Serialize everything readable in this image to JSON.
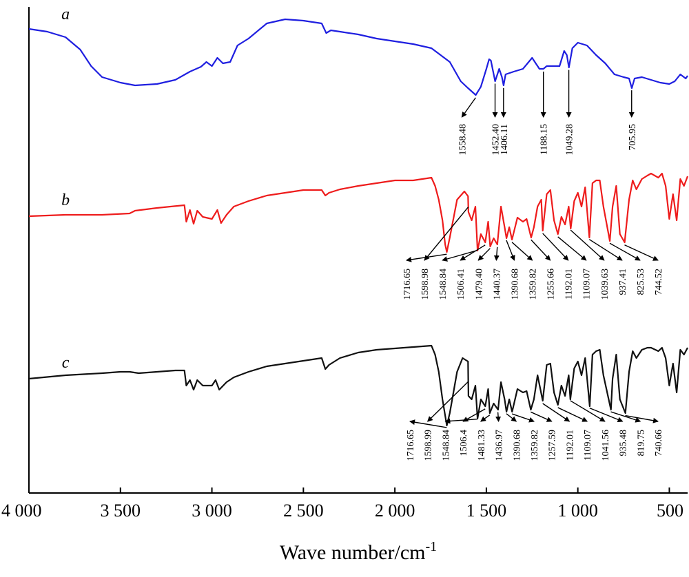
{
  "chart_data": {
    "type": "line",
    "xlabel": "Wave number/cm",
    "xlabel_sup": "-1",
    "x_ticks": [
      {
        "value": 4000,
        "label": "4 000"
      },
      {
        "value": 3500,
        "label": "3 500"
      },
      {
        "value": 3000,
        "label": "3 000"
      },
      {
        "value": 2500,
        "label": "2 500"
      },
      {
        "value": 2000,
        "label": "2 000"
      },
      {
        "value": 1500,
        "label": "1 500"
      },
      {
        "value": 1000,
        "label": "1 000"
      },
      {
        "value": 500,
        "label": "500"
      }
    ],
    "xlim": [
      4000,
      400
    ],
    "x_reversed": true,
    "y_axis_ticks": false,
    "grid": false,
    "legend": "none",
    "series": [
      {
        "name": "a",
        "color": "#1f1fe0",
        "baseline": 42,
        "points": [
          [
            4000,
            42
          ],
          [
            3900,
            46
          ],
          [
            3800,
            54
          ],
          [
            3720,
            72
          ],
          [
            3660,
            96
          ],
          [
            3600,
            112
          ],
          [
            3500,
            120
          ],
          [
            3420,
            124
          ],
          [
            3300,
            122
          ],
          [
            3200,
            116
          ],
          [
            3120,
            104
          ],
          [
            3060,
            97
          ],
          [
            3030,
            90
          ],
          [
            3000,
            96
          ],
          [
            2970,
            84
          ],
          [
            2940,
            92
          ],
          [
            2900,
            90
          ],
          [
            2860,
            66
          ],
          [
            2800,
            56
          ],
          [
            2700,
            34
          ],
          [
            2600,
            28
          ],
          [
            2500,
            30
          ],
          [
            2400,
            34
          ],
          [
            2375,
            48
          ],
          [
            2350,
            44
          ],
          [
            2300,
            46
          ],
          [
            2200,
            50
          ],
          [
            2100,
            56
          ],
          [
            2000,
            60
          ],
          [
            1900,
            64
          ],
          [
            1800,
            70
          ],
          [
            1700,
            90
          ],
          [
            1640,
            118
          ],
          [
            1600,
            128
          ],
          [
            1558,
            138
          ],
          [
            1530,
            126
          ],
          [
            1500,
            100
          ],
          [
            1485,
            86
          ],
          [
            1475,
            88
          ],
          [
            1452,
            118
          ],
          [
            1430,
            100
          ],
          [
            1415,
            112
          ],
          [
            1406,
            124
          ],
          [
            1395,
            108
          ],
          [
            1350,
            104
          ],
          [
            1300,
            100
          ],
          [
            1250,
            84
          ],
          [
            1210,
            100
          ],
          [
            1188,
            100
          ],
          [
            1170,
            96
          ],
          [
            1100,
            96
          ],
          [
            1075,
            74
          ],
          [
            1060,
            80
          ],
          [
            1049,
            98
          ],
          [
            1030,
            70
          ],
          [
            1000,
            62
          ],
          [
            950,
            66
          ],
          [
            900,
            80
          ],
          [
            850,
            92
          ],
          [
            800,
            108
          ],
          [
            750,
            112
          ],
          [
            720,
            114
          ],
          [
            705,
            128
          ],
          [
            690,
            114
          ],
          [
            650,
            112
          ],
          [
            600,
            116
          ],
          [
            550,
            120
          ],
          [
            500,
            122
          ],
          [
            470,
            118
          ],
          [
            440,
            108
          ],
          [
            410,
            114
          ],
          [
            400,
            110
          ]
        ]
      },
      {
        "name": "b",
        "color": "#ee1c1c",
        "baseline": 312,
        "points": [
          [
            4000,
            314
          ],
          [
            3800,
            312
          ],
          [
            3600,
            312
          ],
          [
            3450,
            310
          ],
          [
            3420,
            306
          ],
          [
            3300,
            302
          ],
          [
            3150,
            298
          ],
          [
            3140,
            322
          ],
          [
            3120,
            305
          ],
          [
            3100,
            325
          ],
          [
            3080,
            306
          ],
          [
            3050,
            315
          ],
          [
            3000,
            318
          ],
          [
            2970,
            305
          ],
          [
            2950,
            324
          ],
          [
            2920,
            312
          ],
          [
            2880,
            300
          ],
          [
            2800,
            292
          ],
          [
            2700,
            284
          ],
          [
            2600,
            280
          ],
          [
            2500,
            276
          ],
          [
            2400,
            276
          ],
          [
            2380,
            284
          ],
          [
            2360,
            280
          ],
          [
            2300,
            275
          ],
          [
            2200,
            270
          ],
          [
            2100,
            266
          ],
          [
            2000,
            262
          ],
          [
            1900,
            262
          ],
          [
            1800,
            258
          ],
          [
            1780,
            270
          ],
          [
            1760,
            290
          ],
          [
            1740,
            320
          ],
          [
            1725,
            355
          ],
          [
            1716,
            366
          ],
          [
            1700,
            345
          ],
          [
            1660,
            290
          ],
          [
            1620,
            278
          ],
          [
            1600,
            285
          ],
          [
            1598,
            308
          ],
          [
            1580,
            320
          ],
          [
            1560,
            300
          ],
          [
            1548,
            364
          ],
          [
            1530,
            340
          ],
          [
            1506,
            352
          ],
          [
            1490,
            322
          ],
          [
            1479,
            358
          ],
          [
            1460,
            346
          ],
          [
            1440,
            355
          ],
          [
            1420,
            300
          ],
          [
            1400,
            330
          ],
          [
            1390,
            346
          ],
          [
            1375,
            330
          ],
          [
            1360,
            348
          ],
          [
            1330,
            316
          ],
          [
            1300,
            322
          ],
          [
            1280,
            318
          ],
          [
            1255,
            345
          ],
          [
            1240,
            330
          ],
          [
            1220,
            300
          ],
          [
            1200,
            290
          ],
          [
            1192,
            335
          ],
          [
            1170,
            282
          ],
          [
            1150,
            276
          ],
          [
            1130,
            320
          ],
          [
            1109,
            340
          ],
          [
            1090,
            315
          ],
          [
            1070,
            326
          ],
          [
            1050,
            300
          ],
          [
            1039,
            332
          ],
          [
            1020,
            292
          ],
          [
            1000,
            280
          ],
          [
            980,
            300
          ],
          [
            960,
            272
          ],
          [
            937,
            345
          ],
          [
            920,
            266
          ],
          [
            900,
            262
          ],
          [
            880,
            262
          ],
          [
            860,
            300
          ],
          [
            825,
            350
          ],
          [
            810,
            300
          ],
          [
            790,
            270
          ],
          [
            770,
            340
          ],
          [
            744,
            352
          ],
          [
            720,
            290
          ],
          [
            700,
            262
          ],
          [
            680,
            275
          ],
          [
            650,
            260
          ],
          [
            620,
            255
          ],
          [
            600,
            252
          ],
          [
            560,
            258
          ],
          [
            540,
            252
          ],
          [
            520,
            270
          ],
          [
            500,
            318
          ],
          [
            480,
            282
          ],
          [
            460,
            320
          ],
          [
            440,
            260
          ],
          [
            420,
            270
          ],
          [
            400,
            256
          ]
        ]
      },
      {
        "name": "c",
        "color": "#111111",
        "baseline": 548,
        "points": [
          [
            4000,
            550
          ],
          [
            3800,
            545
          ],
          [
            3600,
            542
          ],
          [
            3500,
            540
          ],
          [
            3450,
            540
          ],
          [
            3400,
            542
          ],
          [
            3300,
            540
          ],
          [
            3200,
            538
          ],
          [
            3150,
            538
          ],
          [
            3140,
            560
          ],
          [
            3120,
            552
          ],
          [
            3100,
            566
          ],
          [
            3080,
            552
          ],
          [
            3050,
            560
          ],
          [
            3000,
            560
          ],
          [
            2980,
            552
          ],
          [
            2960,
            566
          ],
          [
            2920,
            555
          ],
          [
            2880,
            548
          ],
          [
            2800,
            540
          ],
          [
            2700,
            532
          ],
          [
            2600,
            528
          ],
          [
            2500,
            524
          ],
          [
            2400,
            520
          ],
          [
            2380,
            536
          ],
          [
            2360,
            530
          ],
          [
            2300,
            520
          ],
          [
            2200,
            512
          ],
          [
            2100,
            508
          ],
          [
            2000,
            506
          ],
          [
            1900,
            504
          ],
          [
            1800,
            502
          ],
          [
            1780,
            515
          ],
          [
            1760,
            540
          ],
          [
            1740,
            580
          ],
          [
            1716,
            618
          ],
          [
            1700,
            600
          ],
          [
            1660,
            540
          ],
          [
            1630,
            520
          ],
          [
            1600,
            525
          ],
          [
            1598,
            575
          ],
          [
            1580,
            580
          ],
          [
            1560,
            560
          ],
          [
            1548,
            608
          ],
          [
            1530,
            580
          ],
          [
            1506,
            590
          ],
          [
            1490,
            565
          ],
          [
            1481,
            600
          ],
          [
            1460,
            586
          ],
          [
            1436,
            595
          ],
          [
            1420,
            555
          ],
          [
            1400,
            580
          ],
          [
            1390,
            598
          ],
          [
            1375,
            580
          ],
          [
            1359,
            598
          ],
          [
            1330,
            565
          ],
          [
            1300,
            570
          ],
          [
            1280,
            568
          ],
          [
            1257,
            595
          ],
          [
            1240,
            580
          ],
          [
            1220,
            545
          ],
          [
            1192,
            582
          ],
          [
            1170,
            530
          ],
          [
            1150,
            528
          ],
          [
            1130,
            570
          ],
          [
            1109,
            588
          ],
          [
            1090,
            560
          ],
          [
            1070,
            575
          ],
          [
            1050,
            545
          ],
          [
            1041,
            580
          ],
          [
            1020,
            535
          ],
          [
            1000,
            525
          ],
          [
            980,
            545
          ],
          [
            960,
            520
          ],
          [
            935,
            590
          ],
          [
            920,
            515
          ],
          [
            900,
            510
          ],
          [
            880,
            508
          ],
          [
            860,
            545
          ],
          [
            819,
            595
          ],
          [
            810,
            550
          ],
          [
            790,
            515
          ],
          [
            770,
            580
          ],
          [
            740,
            600
          ],
          [
            720,
            540
          ],
          [
            700,
            510
          ],
          [
            680,
            520
          ],
          [
            650,
            508
          ],
          [
            620,
            505
          ],
          [
            600,
            505
          ],
          [
            560,
            510
          ],
          [
            540,
            505
          ],
          [
            520,
            520
          ],
          [
            500,
            560
          ],
          [
            480,
            528
          ],
          [
            460,
            570
          ],
          [
            440,
            508
          ],
          [
            420,
            515
          ],
          [
            400,
            505
          ]
        ]
      }
    ],
    "curve_labels": [
      {
        "text": "a",
        "series": "a"
      },
      {
        "text": "b",
        "series": "b"
      },
      {
        "text": "c",
        "series": "c"
      }
    ],
    "annotations": {
      "a": [
        {
          "label": "1558.48",
          "x": 1558.48
        },
        {
          "label": "1452.40",
          "x": 1452.4
        },
        {
          "label": "1406.11",
          "x": 1406.11
        },
        {
          "label": "1188.15",
          "x": 1188.15
        },
        {
          "label": "1049.28",
          "x": 1049.28
        },
        {
          "label": "705.95",
          "x": 705.95
        }
      ],
      "b": [
        {
          "label": "1716.65",
          "x": 1716.65
        },
        {
          "label": "1598.98",
          "x": 1598.98
        },
        {
          "label": "1548.84",
          "x": 1548.84
        },
        {
          "label": "1506.41",
          "x": 1506.41
        },
        {
          "label": "1479.40",
          "x": 1479.4
        },
        {
          "label": "1440.37",
          "x": 1440.37
        },
        {
          "label": "1390.68",
          "x": 1390.68
        },
        {
          "label": "1359.82",
          "x": 1359.82
        },
        {
          "label": "1255.66",
          "x": 1255.66
        },
        {
          "label": "1192.01",
          "x": 1192.01
        },
        {
          "label": "1109.07",
          "x": 1109.07
        },
        {
          "label": "1039.63",
          "x": 1039.63
        },
        {
          "label": "937.41",
          "x": 937.41
        },
        {
          "label": "825.53",
          "x": 825.53
        },
        {
          "label": "744.52",
          "x": 744.52
        }
      ],
      "c": [
        {
          "label": "1716.65",
          "x": 1716.65
        },
        {
          "label": "1598.99",
          "x": 1598.99
        },
        {
          "label": "1548.84",
          "x": 1548.84
        },
        {
          "label": "1506.4",
          "x": 1506.4
        },
        {
          "label": "1481.33",
          "x": 1481.33
        },
        {
          "label": "1436.97",
          "x": 1436.97
        },
        {
          "label": "1390.68",
          "x": 1390.68
        },
        {
          "label": "1359.82",
          "x": 1359.82
        },
        {
          "label": "1257.59",
          "x": 1257.59
        },
        {
          "label": "1192.01",
          "x": 1192.01
        },
        {
          "label": "1109.07",
          "x": 1109.07
        },
        {
          "label": "1041.56",
          "x": 1041.56
        },
        {
          "label": "935.48",
          "x": 935.48
        },
        {
          "label": "819.75",
          "x": 819.75
        },
        {
          "label": "740.66",
          "x": 740.66
        }
      ]
    }
  }
}
